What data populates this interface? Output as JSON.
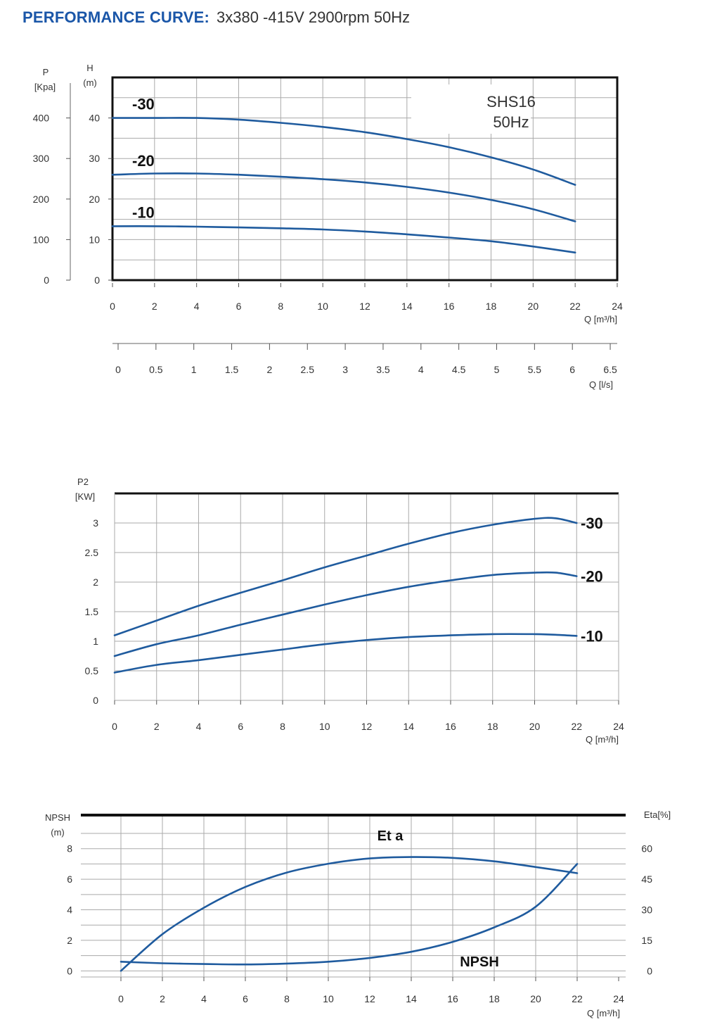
{
  "header": {
    "label": "PERFORMANCE CURVE:",
    "spec": "3x380 -415V   2900rpm  50Hz"
  },
  "colors": {
    "curve": "#1f5b9e",
    "grid": "#aaaaaa",
    "frame": "#111111",
    "header": "#1a56a8"
  },
  "chart_data": [
    {
      "type": "line",
      "title": "SHS16",
      "subtitle": "50Hz",
      "y_left_label": [
        "P",
        "[Kpa]"
      ],
      "y_right_label": [
        "H",
        "(m)"
      ],
      "xlabel": "Q [m³/h]",
      "x_secondary_label": "Q [l/s]",
      "xlim": [
        0,
        24
      ],
      "ylim": [
        0,
        50
      ],
      "x_ticks": [
        "0",
        "2",
        "4",
        "6",
        "8",
        "10",
        "12",
        "14",
        "16",
        "18",
        "20",
        "22",
        "24"
      ],
      "y_ticks": [
        "0",
        "10",
        "20",
        "30",
        "40"
      ],
      "y_left_ticks": [
        "0",
        "100",
        "200",
        "300",
        "400"
      ],
      "x_secondary_ticks": [
        "0",
        "0.5",
        "1",
        "1.5",
        "2",
        "2.5",
        "3",
        "3.5",
        "4",
        "4.5",
        "5",
        "5.5",
        "6",
        "6.5"
      ],
      "series": [
        {
          "name": "-30",
          "x": [
            0,
            2,
            4,
            6,
            8,
            10,
            12,
            14,
            16,
            18,
            20,
            22
          ],
          "values": [
            40,
            40,
            40,
            39.6,
            38.8,
            37.8,
            36.5,
            34.8,
            32.8,
            30.3,
            27.3,
            23.5
          ]
        },
        {
          "name": "-20",
          "x": [
            0,
            2,
            4,
            6,
            8,
            10,
            12,
            14,
            16,
            18,
            20,
            22
          ],
          "values": [
            26,
            26.3,
            26.3,
            26,
            25.5,
            24.9,
            24.1,
            23,
            21.6,
            19.8,
            17.5,
            14.5
          ]
        },
        {
          "name": "-10",
          "x": [
            0,
            2,
            4,
            6,
            8,
            10,
            12,
            14,
            16,
            18,
            20,
            22
          ],
          "values": [
            13.3,
            13.3,
            13.2,
            13,
            12.8,
            12.5,
            12,
            11.3,
            10.5,
            9.6,
            8.3,
            6.8
          ]
        }
      ]
    },
    {
      "type": "line",
      "ylabel": [
        "P2",
        "[KW]"
      ],
      "xlabel": "Q [m³/h]",
      "xlim": [
        0,
        24
      ],
      "ylim": [
        0,
        3.5
      ],
      "x_ticks": [
        "0",
        "2",
        "4",
        "6",
        "8",
        "10",
        "12",
        "14",
        "16",
        "18",
        "20",
        "22",
        "24"
      ],
      "y_ticks": [
        "0",
        "0.5",
        "1",
        "1.5",
        "2",
        "2.5",
        "3"
      ],
      "series": [
        {
          "name": "-30",
          "x": [
            0,
            2,
            4,
            6,
            8,
            10,
            12,
            14,
            16,
            18,
            20,
            21,
            22
          ],
          "values": [
            1.1,
            1.35,
            1.6,
            1.82,
            2.03,
            2.25,
            2.45,
            2.65,
            2.83,
            2.97,
            3.07,
            3.08,
            3.0
          ]
        },
        {
          "name": "-20",
          "x": [
            0,
            2,
            4,
            6,
            8,
            10,
            12,
            14,
            16,
            18,
            20,
            21,
            22
          ],
          "values": [
            0.75,
            0.95,
            1.1,
            1.28,
            1.45,
            1.62,
            1.78,
            1.92,
            2.03,
            2.12,
            2.16,
            2.16,
            2.1
          ]
        },
        {
          "name": "-10",
          "x": [
            0,
            2,
            4,
            6,
            8,
            10,
            12,
            14,
            16,
            18,
            20,
            21,
            22
          ],
          "values": [
            0.47,
            0.6,
            0.68,
            0.77,
            0.86,
            0.95,
            1.02,
            1.07,
            1.1,
            1.12,
            1.12,
            1.11,
            1.09
          ]
        }
      ]
    },
    {
      "type": "line",
      "y_left_label": [
        "NPSH",
        "(m)"
      ],
      "y_right_label": "Eta[%]",
      "xlabel": "Q [m³/h]",
      "xlim": [
        0,
        24
      ],
      "ylim": [
        -0.4,
        10.2
      ],
      "x_ticks": [
        "0",
        "2",
        "4",
        "6",
        "8",
        "10",
        "12",
        "14",
        "16",
        "18",
        "20",
        "22",
        "24"
      ],
      "y_ticks": [
        "0",
        "2",
        "4",
        "6",
        "8"
      ],
      "y_right_ticks": [
        "0",
        "15",
        "30",
        "45",
        "60"
      ],
      "series": [
        {
          "name": "Eta",
          "label": "Et a",
          "x": [
            0,
            2,
            4,
            6,
            8,
            10,
            12,
            14,
            16,
            18,
            20,
            22
          ],
          "values": [
            0,
            18,
            31,
            41.2,
            48.3,
            52.6,
            55.2,
            55.9,
            55.5,
            53.8,
            51,
            48
          ]
        },
        {
          "name": "NPSH",
          "label": "NPSH",
          "x": [
            0,
            2,
            4,
            6,
            8,
            10,
            12,
            14,
            16,
            18,
            20,
            22
          ],
          "values": [
            0.6,
            0.5,
            0.45,
            0.42,
            0.48,
            0.6,
            0.85,
            1.25,
            1.9,
            2.85,
            4.2,
            7.0
          ]
        }
      ]
    }
  ]
}
